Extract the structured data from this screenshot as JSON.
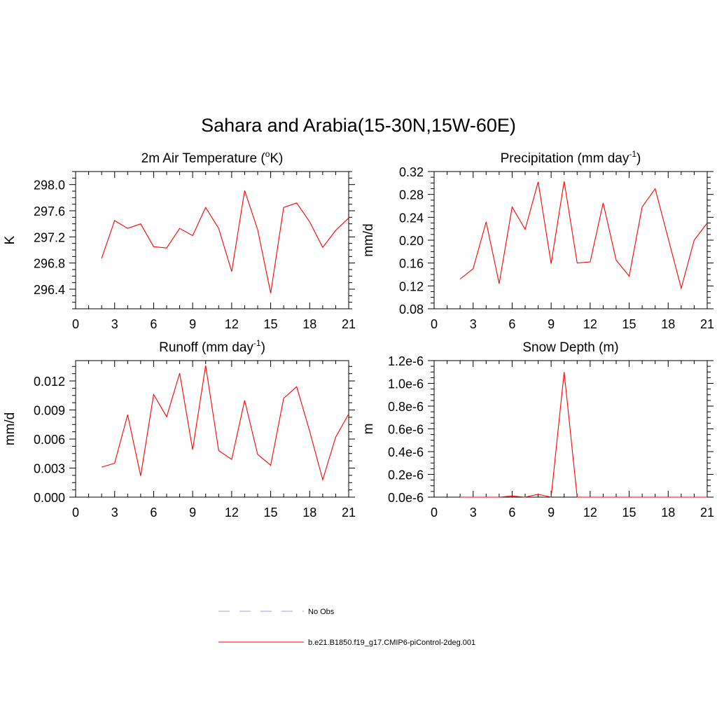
{
  "title": "Sahara and Arabia(15-30N,15W-60E)",
  "colors": {
    "model": "#ff0000",
    "obs": "#9999ff",
    "axis": "#000000"
  },
  "legend": [
    {
      "label": "No Obs",
      "style": "dashed",
      "color": "#9999ff"
    },
    {
      "label": "b.e21.B1850.f19_g17.CMIP6-piControl-2deg.001",
      "style": "solid",
      "color": "#ff0000"
    }
  ],
  "chart_data": [
    {
      "type": "line",
      "title": "2m Air Temperature (",
      "title_sup": "o",
      "title_after": "K)",
      "ylabel": "K",
      "xlim": [
        0,
        21
      ],
      "ylim": [
        296.1,
        298.2
      ],
      "xticks": [
        "0",
        "3",
        "6",
        "9",
        "12",
        "15",
        "18",
        "21"
      ],
      "yticks": [
        "296.4",
        "296.8",
        "297.2",
        "297.6",
        "298.0"
      ],
      "x": [
        2,
        3,
        4,
        5,
        6,
        7,
        8,
        9,
        10,
        11,
        12,
        13,
        14,
        15,
        16,
        17,
        18,
        19,
        20,
        21
      ],
      "series": [
        {
          "values": [
            296.87,
            297.45,
            297.33,
            297.4,
            297.05,
            297.03,
            297.33,
            297.22,
            297.65,
            297.33,
            296.67,
            297.91,
            297.31,
            296.34,
            297.65,
            297.72,
            297.43,
            297.04,
            297.3,
            297.49
          ]
        }
      ]
    },
    {
      "type": "line",
      "title": "Precipitation (mm day",
      "title_sup": "-1",
      "title_after": ")",
      "ylabel": "mm/d",
      "xlim": [
        0,
        21
      ],
      "ylim": [
        0.08,
        0.32
      ],
      "xticks": [
        "0",
        "3",
        "6",
        "9",
        "12",
        "15",
        "18",
        "21"
      ],
      "yticks": [
        "0.08",
        "0.12",
        "0.16",
        "0.20",
        "0.24",
        "0.28",
        "0.32"
      ],
      "x": [
        2,
        3,
        4,
        5,
        6,
        7,
        8,
        9,
        10,
        11,
        12,
        13,
        14,
        15,
        16,
        17,
        18,
        19,
        20,
        21
      ],
      "series": [
        {
          "values": [
            0.132,
            0.15,
            0.232,
            0.124,
            0.258,
            0.219,
            0.302,
            0.159,
            0.303,
            0.16,
            0.162,
            0.265,
            0.165,
            0.137,
            0.258,
            0.29,
            0.203,
            0.116,
            0.2,
            0.23
          ]
        }
      ]
    },
    {
      "type": "line",
      "title": "Runoff (mm day",
      "title_sup": "-1",
      "title_after": ")",
      "ylabel": "mm/d",
      "xlim": [
        0,
        21
      ],
      "ylim": [
        0,
        0.0141
      ],
      "xticks": [
        "0",
        "3",
        "6",
        "9",
        "12",
        "15",
        "18",
        "21"
      ],
      "yticks": [
        "0.000",
        "0.003",
        "0.006",
        "0.009",
        "0.012"
      ],
      "x": [
        2,
        3,
        4,
        5,
        6,
        7,
        8,
        9,
        10,
        11,
        12,
        13,
        14,
        15,
        16,
        17,
        18,
        19,
        20,
        21
      ],
      "series": [
        {
          "values": [
            0.0031,
            0.0035,
            0.0085,
            0.0022,
            0.0106,
            0.0083,
            0.0128,
            0.0049,
            0.0136,
            0.0048,
            0.0039,
            0.01,
            0.0044,
            0.0033,
            0.0102,
            0.0114,
            0.0068,
            0.0018,
            0.0062,
            0.0086
          ]
        }
      ]
    },
    {
      "type": "line",
      "title": "Snow Depth (m)",
      "title_sup": "",
      "title_after": "",
      "ylabel": "m",
      "xlim": [
        0,
        21
      ],
      "ylim": [
        0,
        1.2e-06
      ],
      "xticks": [
        "0",
        "3",
        "6",
        "9",
        "12",
        "15",
        "18",
        "21"
      ],
      "yticks": [
        "0.0e-6",
        "0.2e-6",
        "0.4e-6",
        "0.6e-6",
        "0.8e-6",
        "1.0e-6",
        "1.2e-6"
      ],
      "x": [
        2,
        3,
        4,
        5,
        6,
        7,
        8,
        9,
        10,
        11,
        12,
        13,
        14,
        15,
        16,
        17,
        18,
        19,
        20,
        21
      ],
      "series": [
        {
          "values": [
            0,
            0,
            0,
            0,
            1e-08,
            0,
            2.5e-08,
            0,
            1.1e-06,
            0,
            0,
            0,
            0,
            0,
            0,
            0,
            0,
            0,
            0,
            0
          ]
        }
      ]
    }
  ]
}
